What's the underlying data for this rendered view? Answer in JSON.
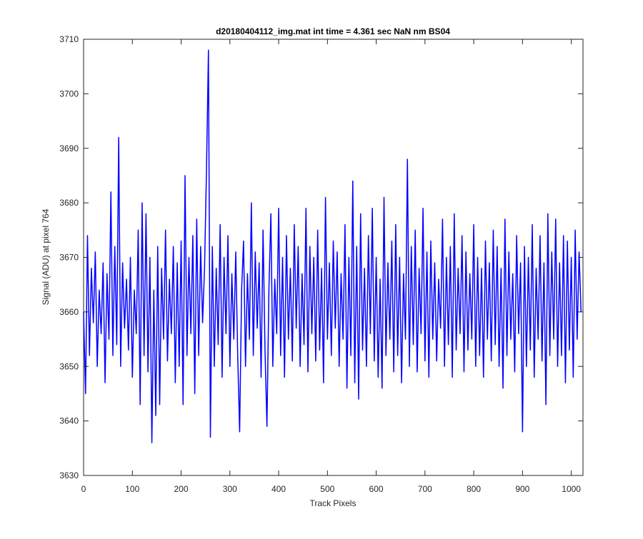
{
  "chart_data": {
    "type": "line",
    "title": "d20180404112_img.mat int time = 4.361 sec  NaN nm BS04",
    "xlabel": "Track Pixels",
    "ylabel": "Signal (ADU) at pixel 764",
    "color": "#0000ff",
    "xlim": [
      0,
      1024
    ],
    "ylim": [
      3630,
      3710
    ],
    "xticks": [
      0,
      100,
      200,
      300,
      400,
      500,
      600,
      700,
      800,
      900,
      1000
    ],
    "yticks": [
      3630,
      3640,
      3650,
      3660,
      3670,
      3680,
      3690,
      3700,
      3710
    ],
    "x": [
      0,
      4,
      8,
      12,
      16,
      20,
      24,
      28,
      32,
      36,
      40,
      44,
      48,
      52,
      56,
      60,
      64,
      68,
      72,
      76,
      80,
      84,
      88,
      92,
      96,
      100,
      104,
      108,
      112,
      116,
      120,
      124,
      128,
      132,
      136,
      140,
      144,
      148,
      152,
      156,
      160,
      164,
      168,
      172,
      176,
      180,
      184,
      188,
      192,
      196,
      200,
      204,
      208,
      212,
      216,
      220,
      224,
      228,
      232,
      236,
      240,
      244,
      248,
      252,
      256,
      260,
      264,
      268,
      272,
      276,
      280,
      284,
      288,
      292,
      296,
      300,
      304,
      308,
      312,
      316,
      320,
      324,
      328,
      332,
      336,
      340,
      344,
      348,
      352,
      356,
      360,
      364,
      368,
      372,
      376,
      380,
      384,
      388,
      392,
      396,
      400,
      404,
      408,
      412,
      416,
      420,
      424,
      428,
      432,
      436,
      440,
      444,
      448,
      452,
      456,
      460,
      464,
      468,
      472,
      476,
      480,
      484,
      488,
      492,
      496,
      500,
      504,
      508,
      512,
      516,
      520,
      524,
      528,
      532,
      536,
      540,
      544,
      548,
      552,
      556,
      560,
      564,
      568,
      572,
      576,
      580,
      584,
      588,
      592,
      596,
      600,
      604,
      608,
      612,
      616,
      620,
      624,
      628,
      632,
      636,
      640,
      644,
      648,
      652,
      656,
      660,
      664,
      668,
      672,
      676,
      680,
      684,
      688,
      692,
      696,
      700,
      704,
      708,
      712,
      716,
      720,
      724,
      728,
      732,
      736,
      740,
      744,
      748,
      752,
      756,
      760,
      764,
      768,
      772,
      776,
      780,
      784,
      788,
      792,
      796,
      800,
      804,
      808,
      812,
      816,
      820,
      824,
      828,
      832,
      836,
      840,
      844,
      848,
      852,
      856,
      860,
      864,
      868,
      872,
      876,
      880,
      884,
      888,
      892,
      896,
      900,
      904,
      908,
      912,
      916,
      920,
      924,
      928,
      932,
      936,
      940,
      944,
      948,
      952,
      956,
      960,
      964,
      968,
      972,
      976,
      980,
      984,
      988,
      992,
      996,
      1000,
      1004,
      1008,
      1012,
      1016,
      1020
    ],
    "values": [
      3660,
      3645,
      3674,
      3652,
      3668,
      3658,
      3671,
      3650,
      3664,
      3656,
      3669,
      3647,
      3667,
      3655,
      3682,
      3652,
      3672,
      3654,
      3692,
      3650,
      3669,
      3657,
      3666,
      3653,
      3670,
      3648,
      3664,
      3656,
      3675,
      3643,
      3680,
      3652,
      3678,
      3649,
      3670,
      3636,
      3664,
      3641,
      3672,
      3643,
      3668,
      3655,
      3675,
      3651,
      3666,
      3656,
      3672,
      3647,
      3669,
      3650,
      3673,
      3643,
      3685,
      3652,
      3670,
      3656,
      3674,
      3645,
      3677,
      3652,
      3672,
      3658,
      3668,
      3686,
      3708,
      3637,
      3672,
      3650,
      3668,
      3654,
      3676,
      3648,
      3670,
      3656,
      3674,
      3650,
      3667,
      3655,
      3671,
      3652,
      3638,
      3664,
      3673,
      3650,
      3667,
      3655,
      3680,
      3652,
      3671,
      3657,
      3669,
      3648,
      3675,
      3653,
      3639,
      3664,
      3678,
      3650,
      3666,
      3656,
      3679,
      3652,
      3670,
      3648,
      3674,
      3655,
      3668,
      3651,
      3676,
      3657,
      3672,
      3650,
      3667,
      3654,
      3679,
      3649,
      3672,
      3656,
      3670,
      3651,
      3675,
      3653,
      3668,
      3647,
      3681,
      3655,
      3669,
      3652,
      3673,
      3657,
      3671,
      3650,
      3667,
      3655,
      3676,
      3646,
      3670,
      3652,
      3684,
      3647,
      3672,
      3644,
      3678,
      3653,
      3668,
      3650,
      3674,
      3656,
      3679,
      3651,
      3670,
      3648,
      3666,
      3646,
      3681,
      3652,
      3669,
      3655,
      3673,
      3649,
      3676,
      3652,
      3670,
      3647,
      3667,
      3655,
      3688,
      3650,
      3672,
      3654,
      3675,
      3649,
      3668,
      3656,
      3679,
      3651,
      3671,
      3648,
      3673,
      3655,
      3669,
      3651,
      3666,
      3657,
      3677,
      3650,
      3670,
      3654,
      3672,
      3648,
      3678,
      3653,
      3668,
      3656,
      3674,
      3649,
      3671,
      3653,
      3667,
      3655,
      3676,
      3650,
      3670,
      3652,
      3668,
      3648,
      3673,
      3655,
      3669,
      3651,
      3675,
      3654,
      3672,
      3650,
      3668,
      3646,
      3677,
      3652,
      3671,
      3655,
      3667,
      3649,
      3674,
      3656,
      3669,
      3638,
      3672,
      3650,
      3670,
      3653,
      3676,
      3648,
      3668,
      3655,
      3674,
      3651,
      3669,
      3643,
      3678,
      3652,
      3671,
      3655,
      3677,
      3650,
      3669,
      3652,
      3674,
      3647,
      3673,
      3653,
      3670,
      3648,
      3675,
      3655,
      3671,
      3660
    ]
  }
}
